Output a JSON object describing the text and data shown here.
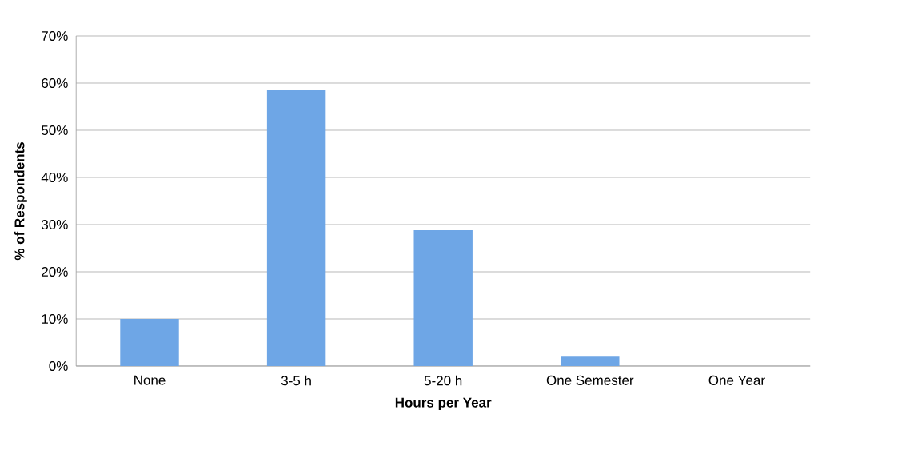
{
  "chart_data": {
    "type": "bar",
    "xlabel": "Hours per Year",
    "ylabel": "% of Respondents",
    "categories": [
      "None",
      "3-5 h",
      "5-20 h",
      "One Semester",
      "One Year"
    ],
    "values": [
      10,
      58.5,
      28.8,
      2,
      0
    ],
    "color": "#6ea6e6",
    "ylim": [
      0,
      70
    ],
    "yticks": [
      {
        "value": 0,
        "label": "0%"
      },
      {
        "value": 10,
        "label": "10%"
      },
      {
        "value": 20,
        "label": "20%"
      },
      {
        "value": 30,
        "label": "30%"
      },
      {
        "value": 40,
        "label": "40%"
      },
      {
        "value": 50,
        "label": "50%"
      },
      {
        "value": 60,
        "label": "60%"
      },
      {
        "value": 70,
        "label": "70%"
      }
    ],
    "grid": "y"
  }
}
